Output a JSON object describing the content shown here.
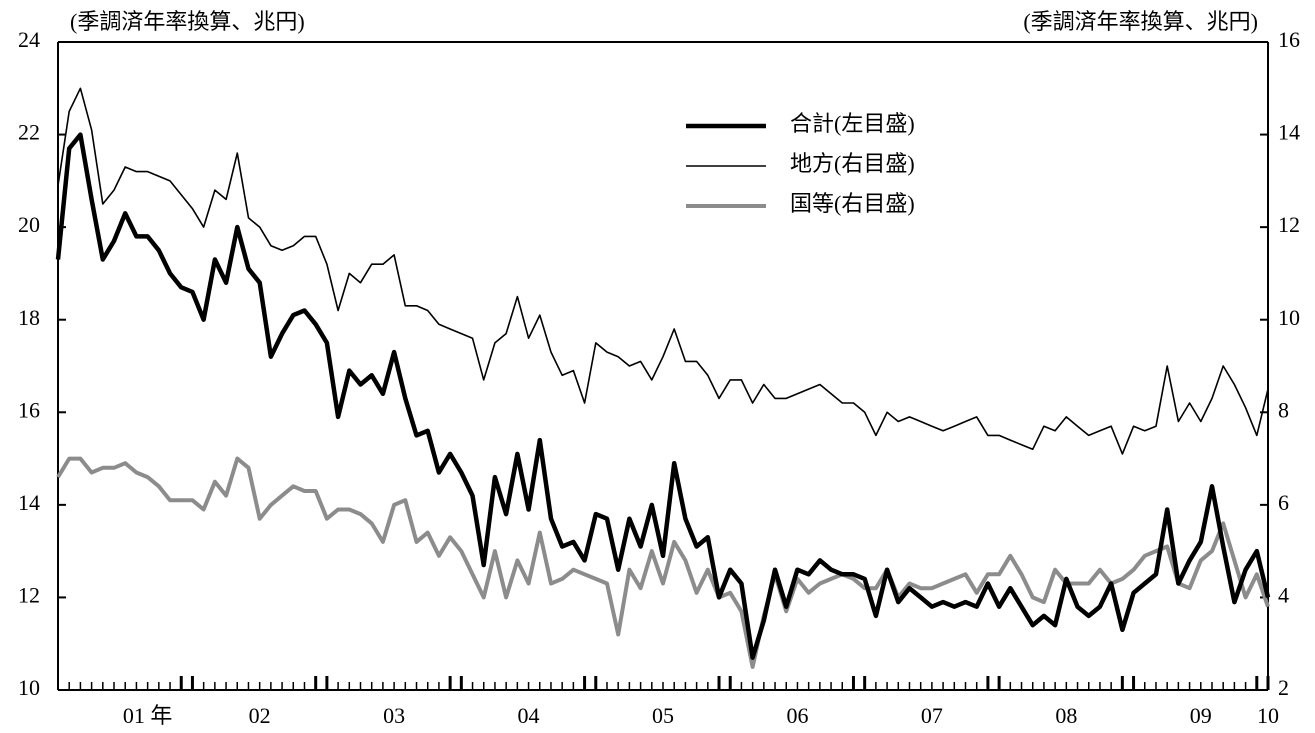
{
  "chart_data": {
    "type": "line",
    "y_label": "(季調済年率換算、兆円)",
    "y2_label": "(季調済年率換算、兆円)",
    "categories": [
      null,
      null,
      null,
      null,
      null,
      null,
      null,
      null,
      "01 年",
      null,
      null,
      null,
      null,
      null,
      null,
      null,
      null,
      null,
      "02",
      null,
      null,
      null,
      null,
      null,
      null,
      null,
      null,
      null,
      null,
      null,
      "03",
      null,
      null,
      null,
      null,
      null,
      null,
      null,
      null,
      null,
      null,
      null,
      "04",
      null,
      null,
      null,
      null,
      null,
      null,
      null,
      null,
      null,
      null,
      null,
      "05",
      null,
      null,
      null,
      null,
      null,
      null,
      null,
      null,
      null,
      null,
      null,
      "06",
      null,
      null,
      null,
      null,
      null,
      null,
      null,
      null,
      null,
      null,
      null,
      "07",
      null,
      null,
      null,
      null,
      null,
      null,
      null,
      null,
      null,
      null,
      null,
      "08",
      null,
      null,
      null,
      null,
      null,
      null,
      null,
      null,
      null,
      null,
      null,
      "09",
      null,
      null,
      null,
      null,
      null,
      "10"
    ],
    "ylim": [
      10,
      24
    ],
    "yticks": [
      10,
      12,
      14,
      16,
      18,
      20,
      22,
      24
    ],
    "y2lim": [
      2,
      16
    ],
    "y2ticks": [
      2,
      4,
      6,
      8,
      10,
      12,
      14,
      16
    ],
    "series": [
      {
        "name": "合計(左目盛)",
        "color": "#000000",
        "width": 4.5,
        "values": [
          19.3,
          21.7,
          22.0,
          20.6,
          19.3,
          19.7,
          20.3,
          19.8,
          19.8,
          19.5,
          19.0,
          18.7,
          18.6,
          18.0,
          19.3,
          18.8,
          20.0,
          19.1,
          18.8,
          17.2,
          17.7,
          18.1,
          18.2,
          17.9,
          17.5,
          15.9,
          16.9,
          16.6,
          16.8,
          16.4,
          17.3,
          16.3,
          15.5,
          15.6,
          14.7,
          15.1,
          14.7,
          14.2,
          12.7,
          14.6,
          13.8,
          15.1,
          13.9,
          15.4,
          13.7,
          13.1,
          13.2,
          12.8,
          13.8,
          13.7,
          12.6,
          13.7,
          13.1,
          14.0,
          12.9,
          14.9,
          13.7,
          13.1,
          13.3,
          12.0,
          12.6,
          12.3,
          10.7,
          11.5,
          12.6,
          11.8,
          12.6,
          12.5,
          12.8,
          12.6,
          12.5,
          12.5,
          12.4,
          11.6,
          12.6,
          11.9,
          12.2,
          12.0,
          11.8,
          11.9,
          11.8,
          11.9,
          11.8,
          12.3,
          11.8,
          12.2,
          11.8,
          11.4,
          11.6,
          11.4,
          12.4,
          11.8,
          11.6,
          11.8,
          12.3,
          11.3,
          12.1,
          12.3,
          12.5,
          13.9,
          12.3,
          12.8,
          13.2,
          14.4,
          13.1,
          11.9,
          12.6,
          13.0,
          12.0
        ]
      },
      {
        "name": "地方(右目盛)",
        "color": "#000000",
        "width": 1.6,
        "axis": "y2",
        "values": [
          12.9,
          14.5,
          15.0,
          14.1,
          12.5,
          12.8,
          13.3,
          13.2,
          13.2,
          13.1,
          13.0,
          12.7,
          12.4,
          12.0,
          12.8,
          12.6,
          13.6,
          12.2,
          12.0,
          11.6,
          11.5,
          11.6,
          11.8,
          11.8,
          11.2,
          10.2,
          11.0,
          10.8,
          11.2,
          11.2,
          11.4,
          10.3,
          10.3,
          10.2,
          9.9,
          9.8,
          9.7,
          9.6,
          8.7,
          9.5,
          9.7,
          10.5,
          9.6,
          10.1,
          9.3,
          8.8,
          8.9,
          8.2,
          9.5,
          9.3,
          9.2,
          9.0,
          9.1,
          8.7,
          9.2,
          9.8,
          9.1,
          9.1,
          8.8,
          8.3,
          8.7,
          8.7,
          8.2,
          8.6,
          8.3,
          8.3,
          8.4,
          8.5,
          8.6,
          8.4,
          8.2,
          8.2,
          8.0,
          7.5,
          8.0,
          7.8,
          7.9,
          7.8,
          7.7,
          7.6,
          7.7,
          7.8,
          7.9,
          7.5,
          7.5,
          7.4,
          7.3,
          7.2,
          7.7,
          7.6,
          7.9,
          7.7,
          7.5,
          7.6,
          7.7,
          7.1,
          7.7,
          7.6,
          7.7,
          9.0,
          7.8,
          8.2,
          7.8,
          8.3,
          9.0,
          8.6,
          8.1,
          7.5,
          8.5
        ]
      },
      {
        "name": "国等(右目盛)",
        "color": "#8c8c8c",
        "width": 4,
        "axis": "y2",
        "values": [
          6.6,
          7.0,
          7.0,
          6.7,
          6.8,
          6.8,
          6.9,
          6.7,
          6.6,
          6.4,
          6.1,
          6.1,
          6.1,
          5.9,
          6.5,
          6.2,
          7.0,
          6.8,
          5.7,
          6.0,
          6.2,
          6.4,
          6.3,
          6.3,
          5.7,
          5.9,
          5.9,
          5.8,
          5.6,
          5.2,
          6.0,
          6.1,
          5.2,
          5.4,
          4.9,
          5.3,
          5.0,
          4.5,
          4.0,
          5.0,
          4.0,
          4.8,
          4.3,
          5.4,
          4.3,
          4.4,
          4.6,
          4.5,
          4.4,
          4.3,
          3.2,
          4.6,
          4.2,
          5.0,
          4.3,
          5.2,
          4.8,
          4.1,
          4.6,
          4.0,
          4.1,
          3.7,
          2.5,
          3.6,
          4.5,
          3.7,
          4.4,
          4.1,
          4.3,
          4.4,
          4.5,
          4.4,
          4.2,
          4.2,
          4.6,
          4.0,
          4.3,
          4.2,
          4.2,
          4.3,
          4.4,
          4.5,
          4.1,
          4.5,
          4.5,
          4.9,
          4.5,
          4.0,
          3.9,
          4.6,
          4.3,
          4.3,
          4.3,
          4.6,
          4.3,
          4.4,
          4.6,
          4.9,
          5.0,
          5.1,
          4.3,
          4.2,
          4.8,
          5.0,
          5.6,
          4.8,
          4.0,
          4.5,
          3.8
        ]
      }
    ]
  }
}
